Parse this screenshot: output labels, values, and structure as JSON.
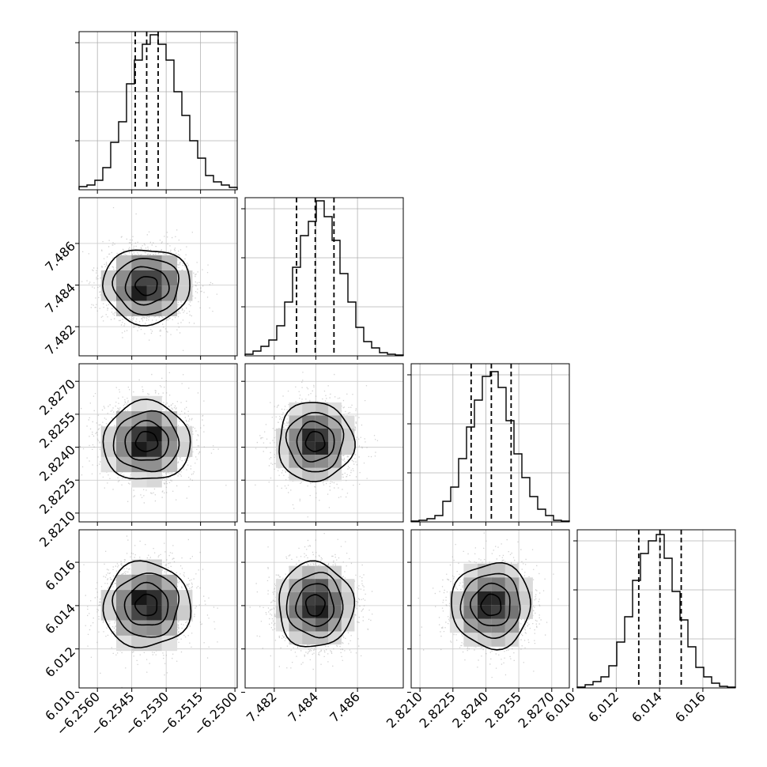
{
  "chart_data": {
    "type": "corner",
    "title": "",
    "parameters": [
      {
        "name": "",
        "range": [
          -6.2568,
          -6.2499
        ],
        "ticks": [
          -6.256,
          -6.2545,
          -6.253,
          -6.2515,
          -6.25
        ],
        "tick_labels": [
          "−6.2560",
          "−6.2545",
          "−6.2530",
          "−6.2515",
          "−6.2500"
        ],
        "quantiles": [
          -6.25435,
          -6.25385,
          -6.25335
        ],
        "mean": -6.25385,
        "sd": 0.00095
      },
      {
        "name": "",
        "range": [
          7.4806,
          7.4882
        ],
        "ticks": [
          7.482,
          7.484,
          7.486
        ],
        "tick_labels": [
          "7.482",
          "7.484",
          "7.486"
        ],
        "quantiles": [
          7.48307,
          7.48397,
          7.48487
        ],
        "mean": 7.48397,
        "sd": 0.0009
      },
      {
        "name": "",
        "range": [
          2.8206,
          2.8278
        ],
        "ticks": [
          2.821,
          2.8225,
          2.824,
          2.8255,
          2.827
        ],
        "tick_labels": [
          "2.8210",
          "2.8225",
          "2.8240",
          "2.8255",
          "2.8270"
        ],
        "quantiles": [
          2.82333,
          2.82425,
          2.82515
        ],
        "mean": 2.82425,
        "sd": 0.0009
      },
      {
        "name": "",
        "range": [
          6.0102,
          6.0175
        ],
        "ticks": [
          6.01,
          6.012,
          6.014,
          6.016
        ],
        "tick_labels": [
          "6.010",
          "6.012",
          "6.014",
          "6.016"
        ],
        "quantiles": [
          6.01304,
          6.01402,
          6.015
        ],
        "mean": 6.01402,
        "sd": 0.00098
      }
    ],
    "histograms": [
      [
        0.02,
        0.03,
        0.06,
        0.14,
        0.3,
        0.43,
        0.67,
        0.82,
        0.92,
        0.98,
        0.92,
        0.82,
        0.62,
        0.47,
        0.31,
        0.2,
        0.09,
        0.05,
        0.03,
        0.015
      ],
      [
        0.01,
        0.03,
        0.06,
        0.1,
        0.19,
        0.34,
        0.56,
        0.76,
        0.85,
        0.98,
        0.88,
        0.73,
        0.52,
        0.34,
        0.18,
        0.09,
        0.05,
        0.02,
        0.01,
        0.005
      ],
      [
        0.005,
        0.01,
        0.02,
        0.04,
        0.13,
        0.22,
        0.4,
        0.6,
        0.77,
        0.92,
        0.95,
        0.85,
        0.64,
        0.43,
        0.28,
        0.16,
        0.08,
        0.04,
        0.01,
        0.005
      ],
      [
        0.005,
        0.02,
        0.04,
        0.07,
        0.14,
        0.29,
        0.45,
        0.68,
        0.85,
        0.93,
        0.97,
        0.82,
        0.61,
        0.43,
        0.26,
        0.13,
        0.07,
        0.03,
        0.01,
        0.005
      ]
    ],
    "contour_levels": [
      0.118,
      0.393,
      0.675,
      0.865
    ],
    "grid": true,
    "legend": "none"
  }
}
